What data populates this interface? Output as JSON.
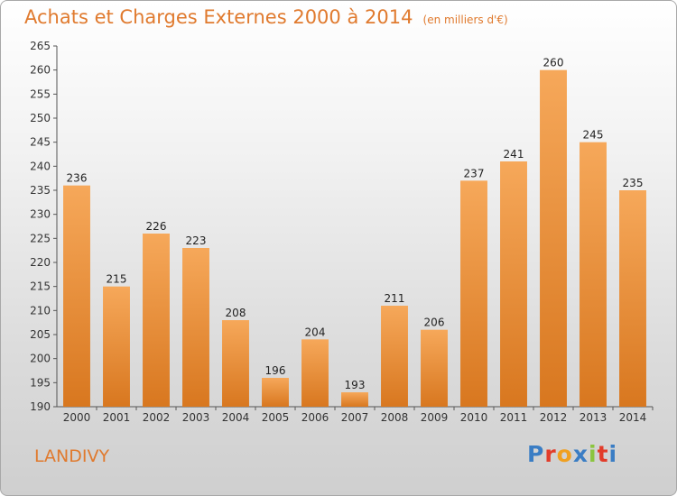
{
  "header": {
    "title": "Achats et Charges Externes 2000 à 2014",
    "unit_note": "(en milliers d'€)"
  },
  "footer": {
    "commune": "LANDIVY",
    "logo": "Proxiti",
    "logo_colors": [
      "#3a7dc4",
      "#e23c2a",
      "#f0a020",
      "#3a7dc4",
      "#8bc53f",
      "#e23c2a",
      "#3a7dc4"
    ]
  },
  "colors": {
    "bar_light": "#f6a85a",
    "bar_dark": "#d8771f",
    "accent_text": "#e07a2e"
  },
  "chart_data": {
    "type": "bar",
    "title": "Achats et Charges Externes 2000 à 2014",
    "subtitle": "(en milliers d'€)",
    "categories": [
      "2000",
      "2001",
      "2002",
      "2003",
      "2004",
      "2005",
      "2006",
      "2007",
      "2008",
      "2009",
      "2010",
      "2011",
      "2012",
      "2013",
      "2014"
    ],
    "values": [
      236,
      215,
      226,
      223,
      208,
      196,
      204,
      193,
      211,
      206,
      237,
      241,
      260,
      245,
      235
    ],
    "ylim": [
      190,
      265
    ],
    "ytick_step": 5,
    "grid": false,
    "data_labels": true
  }
}
